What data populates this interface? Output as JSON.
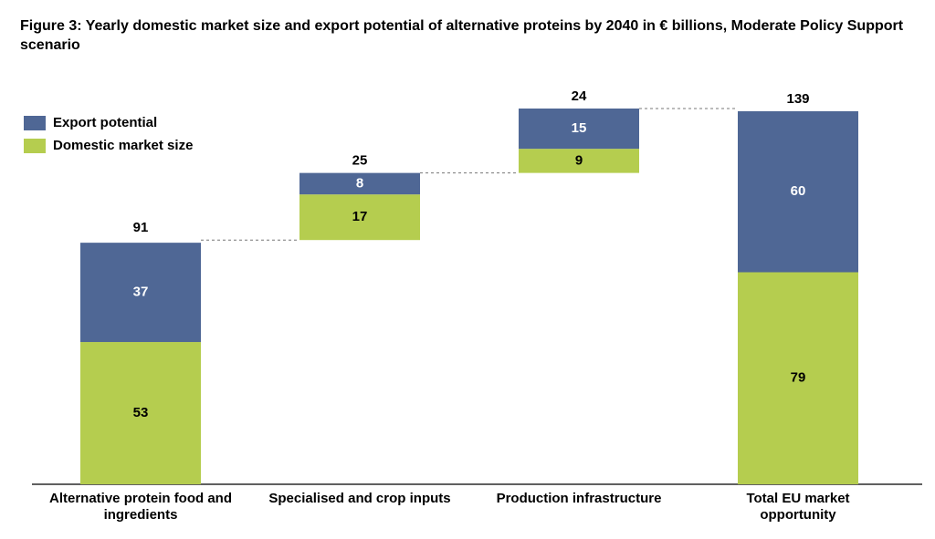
{
  "chart_data": {
    "type": "waterfall",
    "title": "Figure 3: Yearly domestic market size and export potential of alternative proteins by 2040 in € billions, Moderate Policy Support scenario",
    "categories": [
      "Alternative protein food and ingredients",
      "Specialised and crop inputs",
      "Production infrastructure",
      "Total EU market opportunity"
    ],
    "series": [
      {
        "name": "Domestic market size",
        "color": "#b5cd4f",
        "values": [
          53,
          17,
          9,
          79
        ]
      },
      {
        "name": "Export potential",
        "color": "#4f6795",
        "values": [
          37,
          8,
          15,
          60
        ]
      }
    ],
    "totals": [
      91,
      25,
      24,
      139
    ],
    "legend": "top-left"
  }
}
